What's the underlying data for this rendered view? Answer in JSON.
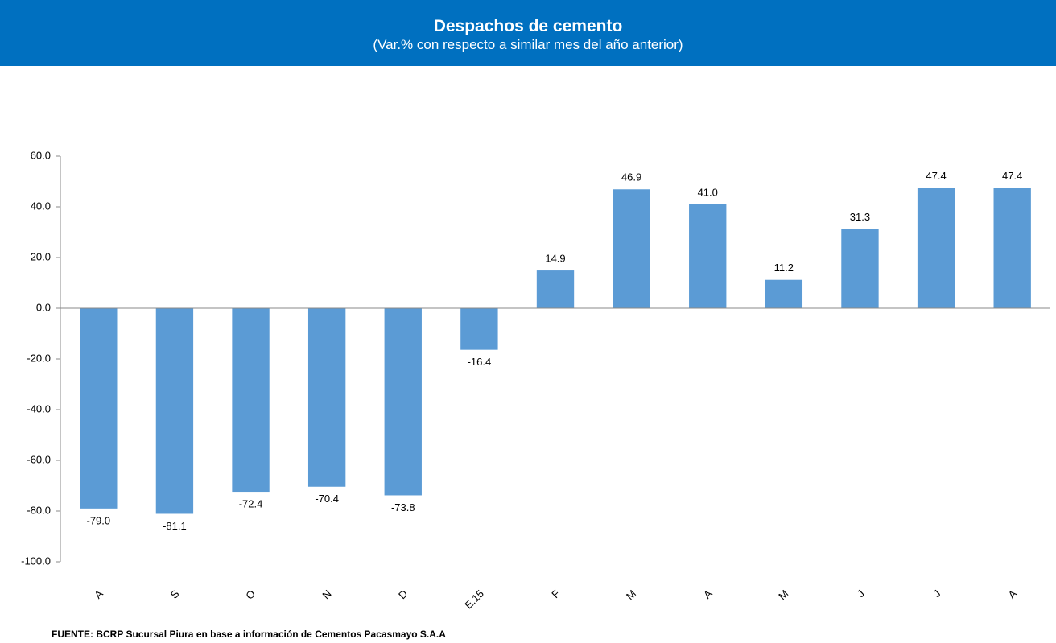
{
  "chart_data": {
    "type": "bar",
    "title": "Despachos de cemento",
    "subtitle": "(Var.% con respecto a similar mes del año anterior)",
    "categories": [
      "A",
      "S",
      "O",
      "N",
      "D",
      "E.15",
      "F",
      "M",
      "A",
      "M",
      "J",
      "J",
      "A"
    ],
    "values": [
      -79.0,
      -81.1,
      -72.4,
      -70.4,
      -73.8,
      -16.4,
      14.9,
      46.9,
      41.0,
      11.2,
      31.3,
      47.4,
      47.4
    ],
    "value_labels": [
      "-79.0",
      "-81.1",
      "-72.4",
      "-70.4",
      "-73.8",
      "-16.4",
      "14.9",
      "46.9",
      "41.0",
      "11.2",
      "31.3",
      "47.4",
      "47.4"
    ],
    "color": "#5b9bd5",
    "ylim": [
      -100,
      60
    ],
    "yticks": [
      {
        "value": -100,
        "label": "-100.0"
      },
      {
        "value": -80,
        "label": "-80.0"
      },
      {
        "value": -60,
        "label": "-60.0"
      },
      {
        "value": -40,
        "label": "-40.0"
      },
      {
        "value": -20,
        "label": "-20.0"
      },
      {
        "value": 0,
        "label": "0.0"
      },
      {
        "value": 20,
        "label": "20.0"
      },
      {
        "value": 40,
        "label": "40.0"
      },
      {
        "value": 60,
        "label": "60.0"
      }
    ],
    "grid": false,
    "source": "FUENTE: BCRP Sucursal Piura en base a información de Cementos Pacasmayo S.A.A"
  }
}
